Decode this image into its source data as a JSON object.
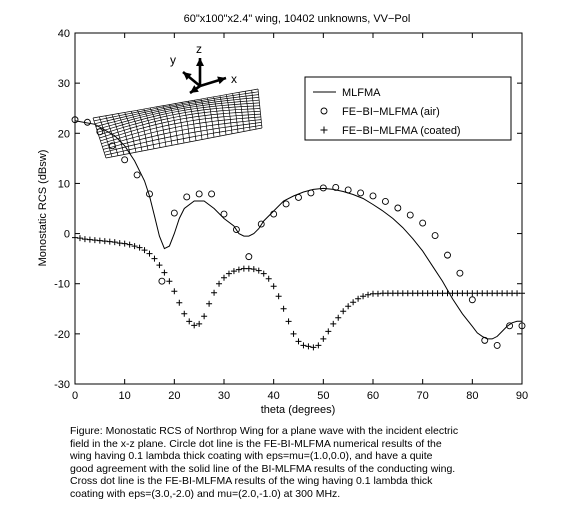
{
  "chart_data": {
    "type": "line",
    "title": "60\"x100\"x2.4\" wing, 10402 unknowns,  VV−Pol",
    "xlabel": "theta (degrees)",
    "ylabel": "Monostatic RCS (dBsw)",
    "xlim": [
      0,
      90
    ],
    "ylim": [
      -30,
      40
    ],
    "xticks": [
      0,
      10,
      20,
      30,
      40,
      50,
      60,
      70,
      80,
      90
    ],
    "yticks": [
      -30,
      -20,
      -10,
      0,
      10,
      20,
      30,
      40
    ],
    "grid": false,
    "legend_position": "top-right",
    "series": [
      {
        "name": "MLFMA",
        "marker": "line",
        "x": [
          0,
          4,
          8,
          10,
          12,
          14,
          15,
          16,
          17,
          18,
          19,
          20,
          21,
          22,
          24,
          26,
          28,
          30,
          32,
          33,
          34,
          35,
          36,
          37,
          38,
          40,
          42,
          44,
          46,
          48,
          50,
          52,
          54,
          56,
          58,
          60,
          62,
          64,
          66,
          68,
          70,
          72,
          74,
          76,
          78,
          80,
          81,
          82,
          83,
          84,
          85,
          86,
          87,
          88,
          89,
          90
        ],
        "y": [
          22.5,
          21.8,
          19.5,
          17.5,
          14.5,
          10.5,
          7.5,
          3.5,
          -0.5,
          -3,
          -2.5,
          0,
          3,
          5,
          6.5,
          6.5,
          5,
          3,
          1.5,
          0,
          -0.5,
          -0.5,
          0,
          1,
          2.5,
          4.5,
          6.5,
          7.5,
          8.3,
          8.8,
          9,
          8.8,
          8.4,
          7.8,
          7,
          5.8,
          4.5,
          3,
          1.2,
          -1,
          -3.5,
          -6.5,
          -9.5,
          -13,
          -16,
          -18.5,
          -19.8,
          -20.5,
          -21,
          -21,
          -20.5,
          -19.5,
          -18.5,
          -17.8,
          -17.5,
          -17.5
        ]
      },
      {
        "name": "FE−BI−MLFMA (air)",
        "marker": "circle",
        "x": [
          0,
          2.5,
          5,
          7.5,
          10,
          12.5,
          15,
          17.5,
          20,
          22.5,
          25,
          27.5,
          30,
          32.5,
          35,
          37.5,
          40,
          42.5,
          45,
          47.5,
          50,
          52.5,
          55,
          57.5,
          60,
          62.5,
          65,
          67.5,
          70,
          72.5,
          75,
          77.5,
          80,
          82.5,
          85,
          87.5,
          90
        ],
        "y": [
          22.7,
          22.2,
          20.3,
          17.5,
          14.7,
          11.7,
          7.9,
          -9.5,
          4.1,
          7.3,
          7.9,
          7.9,
          3.9,
          0.8,
          -4.6,
          1.9,
          3.9,
          5.9,
          7.2,
          8.1,
          9.1,
          9.2,
          8.7,
          8.1,
          7.5,
          6.4,
          5.1,
          3.7,
          2.1,
          -0.4,
          -4.3,
          -7.9,
          -13.2,
          -21.3,
          -22.3,
          -18.4,
          -18.4
        ]
      },
      {
        "name": "FE−BI−MLFMA (coated)",
        "marker": "plus",
        "x": [
          0,
          1,
          2,
          3,
          4,
          5,
          6,
          7,
          8,
          9,
          10,
          11,
          12,
          13,
          14,
          15,
          16,
          17,
          18,
          19,
          20,
          21,
          22,
          23,
          24,
          25,
          26,
          27,
          28,
          29,
          30,
          31,
          32,
          33,
          34,
          35,
          36,
          37,
          38,
          39,
          40,
          41,
          42,
          43,
          44,
          45,
          46,
          47,
          48,
          49,
          50,
          51,
          52,
          53,
          54,
          55,
          56,
          57,
          58,
          59,
          60,
          61,
          62,
          63,
          64,
          65,
          66,
          67,
          68,
          69,
          70,
          71,
          72,
          73,
          74,
          75,
          76,
          77,
          78,
          79,
          80,
          81,
          82,
          83,
          84,
          85,
          86,
          87,
          88,
          89,
          90
        ],
        "y": [
          -0.8,
          -0.9,
          -1.1,
          -1.2,
          -1.3,
          -1.4,
          -1.5,
          -1.6,
          -1.7,
          -1.9,
          -2.0,
          -2.2,
          -2.5,
          -2.8,
          -3.3,
          -4.0,
          -5.0,
          -6.3,
          -7.8,
          -9.5,
          -11.5,
          -13.8,
          -16.0,
          -17.5,
          -18.3,
          -18.0,
          -16.5,
          -14.0,
          -11.8,
          -10.0,
          -8.8,
          -8.0,
          -7.5,
          -7.2,
          -7.0,
          -7.0,
          -7.1,
          -7.4,
          -8.0,
          -9.0,
          -10.5,
          -12.5,
          -15.0,
          -17.5,
          -20.0,
          -21.5,
          -22.3,
          -22.5,
          -22.7,
          -22.3,
          -21.0,
          -19.5,
          -18.0,
          -16.8,
          -15.5,
          -14.5,
          -13.7,
          -13.0,
          -12.5,
          -12.2,
          -12.0,
          -12.0,
          -11.9,
          -11.9,
          -11.9,
          -11.9,
          -11.9,
          -11.9,
          -11.9,
          -11.9,
          -11.9,
          -11.9,
          -11.9,
          -11.9,
          -11.9,
          -11.9,
          -11.9,
          -11.9,
          -11.9,
          -11.9,
          -11.9,
          -11.9,
          -11.9,
          -11.9,
          -11.9,
          -11.9,
          -11.9,
          -11.9,
          -11.9,
          -11.9,
          -11.9
        ]
      }
    ],
    "inset": {
      "axis_labels": [
        "z",
        "y",
        "x"
      ]
    }
  },
  "caption": {
    "lines": [
      "Figure: Monostatic RCS of Northrop Wing for a plane wave with the incident electric",
      "field in the x-z  plane.    Circle dot line is the FE-BI-MLFMA numerical  results  of the",
      "wing  having  0.1  lambda thick coating with eps=mu=(1.0,0.0),   and  have  a  quite",
      "good agreement with the solid line of the BI-MLFMA results of the conducting wing.",
      "Cross  dot  line  is  the  FE-BI-MLFMA  results of the wing having 0.1 lambda  thick",
      "coating with eps=(3.0,-2.0) and mu=(2.0,-1.0) at 300 MHz."
    ]
  }
}
